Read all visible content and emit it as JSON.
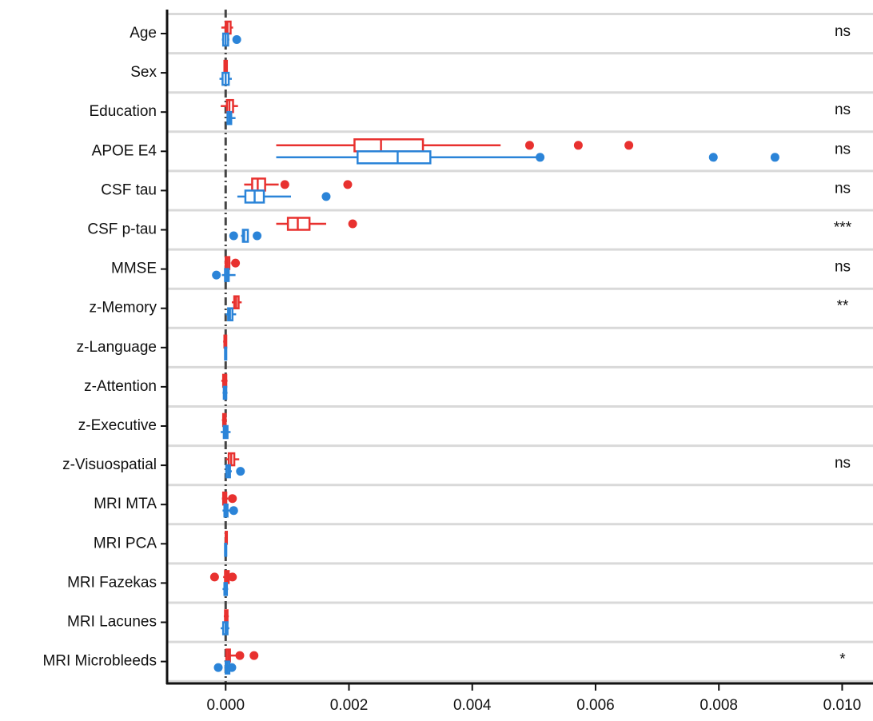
{
  "chart_data": {
    "type": "boxplot",
    "categories": [
      "Age",
      "Sex",
      "Education",
      "APOE E4",
      "CSF tau",
      "CSF p-tau",
      "MMSE",
      "z-Memory",
      "z-Language",
      "z-Attention",
      "z-Executive",
      "z-Visuospatial",
      "MRI MTA",
      "MRI PCA",
      "MRI Fazekas",
      "MRI Lacunes",
      "MRI Microbleeds"
    ],
    "annotations": [
      "ns",
      null,
      "ns",
      "ns",
      "ns",
      "***",
      "ns",
      "**",
      null,
      null,
      null,
      "ns",
      null,
      null,
      null,
      null,
      "*"
    ],
    "xlim": [
      -0.00095,
      0.0105
    ],
    "xticks": [
      {
        "value": 0,
        "label": "0.000"
      },
      {
        "value": 0.002,
        "label": "0.002"
      },
      {
        "value": 0.004,
        "label": "0.004"
      },
      {
        "value": 0.006,
        "label": "0.006"
      },
      {
        "value": 0.008,
        "label": "0.008"
      },
      {
        "value": 0.01,
        "label": "0.010"
      }
    ],
    "vline": 0,
    "series": [
      {
        "color": "#e8312f",
        "whisker_low": [
          -7e-05,
          -3e-05,
          -8e-05,
          0.00082,
          0.0003,
          0.00082,
          -2e-05,
          0.0001,
          -4e-05,
          -7e-05,
          -6e-05,
          0,
          -6e-05,
          -1e-05,
          -4e-05,
          -3e-05,
          0
        ],
        "q1": [
          0,
          -2e-05,
          2e-05,
          0.00209,
          0.00043,
          0.00101,
          0,
          0.00014,
          -2e-05,
          -4e-05,
          -4e-05,
          5e-05,
          -4e-05,
          0,
          -1e-05,
          -1e-05,
          1e-05
        ],
        "median": [
          3e-05,
          0,
          6e-05,
          0.00252,
          0.00052,
          0.00117,
          3e-05,
          0.00017,
          0,
          -2e-05,
          -2e-05,
          9e-05,
          -2e-05,
          1e-05,
          2e-05,
          1e-05,
          4e-05
        ],
        "q3": [
          8e-05,
          2e-05,
          0.00012,
          0.0032,
          0.00064,
          0.00136,
          6e-05,
          0.00021,
          1e-05,
          1e-05,
          0,
          0.00014,
          1e-05,
          2e-05,
          5e-05,
          3e-05,
          7e-05
        ],
        "whisker_high": [
          0.00012,
          3e-05,
          0.0002,
          0.00446,
          0.00086,
          0.00163,
          8e-05,
          0.00026,
          2e-05,
          3e-05,
          2e-05,
          0.00022,
          4e-05,
          3e-05,
          8e-05,
          5e-05,
          0.0002
        ],
        "outliers": [
          [],
          [],
          [],
          [
            0.00493,
            0.00572,
            0.00654
          ],
          [
            0.00096,
            0.00198
          ],
          [
            0.00206
          ],
          [
            0.00016
          ],
          [],
          [],
          [],
          [],
          [],
          [
            0.00011
          ],
          [],
          [
            -0.00018,
            0.00011
          ],
          [],
          [
            0.00023,
            0.00046
          ]
        ]
      },
      {
        "color": "#2b84d8",
        "whisker_low": [
          -6e-05,
          -0.0001,
          2e-05,
          0.00082,
          0.00019,
          0.00025,
          -6e-05,
          0,
          -2e-05,
          -5e-05,
          -8e-05,
          0,
          -5e-05,
          -2e-05,
          -5e-05,
          -8e-05,
          -2e-05
        ],
        "q1": [
          -4e-05,
          -5e-05,
          3e-05,
          0.00214,
          0.00032,
          0.00028,
          -1e-05,
          4e-05,
          -1e-05,
          -3e-05,
          -3e-05,
          1e-05,
          -2e-05,
          -1e-05,
          -2e-05,
          -4e-05,
          0
        ],
        "median": [
          0,
          0,
          6e-05,
          0.00279,
          0.00047,
          0.0003,
          2e-05,
          7e-05,
          0,
          -1e-05,
          0,
          4e-05,
          0,
          0,
          0,
          0,
          3e-05
        ],
        "q3": [
          4e-05,
          5e-05,
          9e-05,
          0.00332,
          0.00062,
          0.00036,
          5e-05,
          0.00011,
          1e-05,
          1e-05,
          3e-05,
          7e-05,
          3e-05,
          1e-05,
          2e-05,
          3e-05,
          6e-05
        ],
        "whisker_high": [
          6e-05,
          0.0001,
          0.00016,
          0.00508,
          0.00106,
          0.00036,
          0.00016,
          0.00017,
          2e-05,
          3e-05,
          8e-05,
          0.0001,
          7e-05,
          2e-05,
          4e-05,
          6e-05,
          0.00012
        ],
        "outliers": [
          [
            0.00018
          ],
          [],
          [],
          [
            0.0051,
            0.00791,
            0.00891
          ],
          [
            0.00163
          ],
          [
            0.00013,
            0.00051
          ],
          [
            -0.00015
          ],
          [],
          [],
          [],
          [],
          [
            0.00024
          ],
          [
            0.00013
          ],
          [],
          [],
          [],
          [
            -0.00012,
            0.0001
          ]
        ]
      }
    ]
  }
}
